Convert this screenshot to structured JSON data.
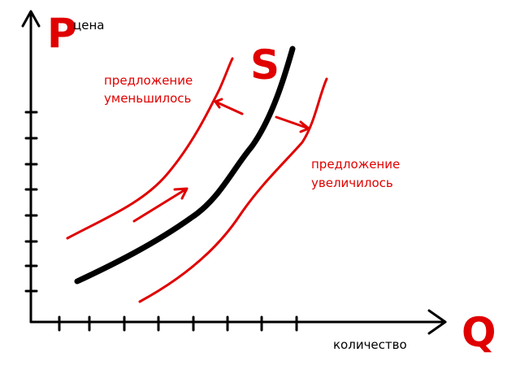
{
  "axes": {
    "y_letter": "P",
    "y_label": "цена",
    "x_letter": "Q",
    "x_label": "количество"
  },
  "curve_label": "S",
  "annotations": [
    {
      "lines": [
        "предложение",
        "уменьшилось"
      ]
    },
    {
      "lines": [
        "предложение",
        "увеличилось"
      ]
    }
  ]
}
